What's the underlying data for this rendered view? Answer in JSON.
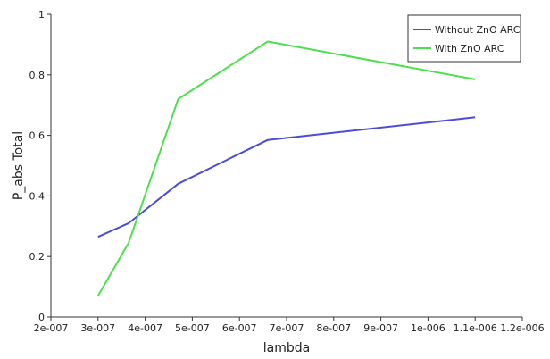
{
  "chart_data": {
    "type": "line",
    "xlabel": "lambda",
    "ylabel": "P_abs Total",
    "xlim": [
      2e-07,
      1.2e-06
    ],
    "ylim": [
      0,
      1
    ],
    "grid": false,
    "legend_position": "top-right",
    "x_ticks": [
      {
        "value": 2e-07,
        "label": "2e-007"
      },
      {
        "value": 3e-07,
        "label": "3e-007"
      },
      {
        "value": 4e-07,
        "label": "4e-007"
      },
      {
        "value": 5e-07,
        "label": "5e-007"
      },
      {
        "value": 6e-07,
        "label": "6e-007"
      },
      {
        "value": 7e-07,
        "label": "7e-007"
      },
      {
        "value": 8e-07,
        "label": "8e-007"
      },
      {
        "value": 9e-07,
        "label": "9e-007"
      },
      {
        "value": 1e-06,
        "label": "1e-006"
      },
      {
        "value": 1.1e-06,
        "label": "1.1e-006"
      },
      {
        "value": 1.2e-06,
        "label": "1.2e-006"
      }
    ],
    "y_ticks": [
      {
        "value": 0,
        "label": "0"
      },
      {
        "value": 0.2,
        "label": "0.2"
      },
      {
        "value": 0.4,
        "label": "0.4"
      },
      {
        "value": 0.6,
        "label": "0.6"
      },
      {
        "value": 0.8,
        "label": "0.8"
      },
      {
        "value": 1,
        "label": "1"
      }
    ],
    "series": [
      {
        "name": "Without ZnO ARC",
        "color": "#4b4bd6",
        "x": [
          3e-07,
          3.65e-07,
          4.7e-07,
          6.6e-07,
          1.1e-06
        ],
        "y": [
          0.265,
          0.31,
          0.44,
          0.585,
          0.66
        ]
      },
      {
        "name": "With ZnO ARC",
        "color": "#4ce04c",
        "x": [
          3e-07,
          3.65e-07,
          4.7e-07,
          6.6e-07,
          1.1e-06
        ],
        "y": [
          0.07,
          0.245,
          0.72,
          0.91,
          0.785
        ]
      }
    ]
  }
}
